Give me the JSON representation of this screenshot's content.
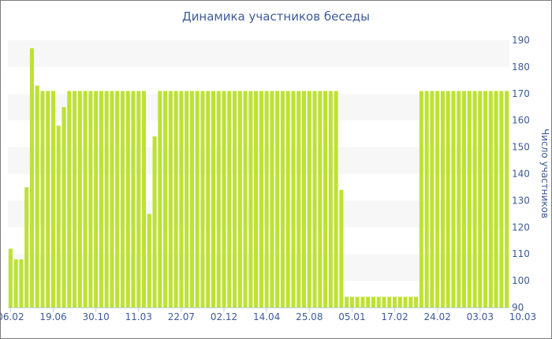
{
  "chart_data": {
    "type": "bar",
    "title": "Динамика участников беседы",
    "ylabel": "Число участников",
    "ylim": [
      90,
      190
    ],
    "y_ticks": [
      90,
      100,
      110,
      120,
      130,
      140,
      150,
      160,
      170,
      180,
      190
    ],
    "y_axis_side": "right",
    "x_tick_labels": [
      "06.02",
      "19.06",
      "30.10",
      "11.03",
      "22.07",
      "02.12",
      "14.04",
      "25.08",
      "05.01",
      "17.02",
      "24.02",
      "03.03",
      "10.03"
    ],
    "x_tick_indices": [
      0,
      8,
      16,
      24,
      32,
      40,
      48,
      56,
      64,
      72,
      80,
      88,
      96
    ],
    "bar_color": "#bde232",
    "grid_band_color": "#f7f7f7",
    "text_color": "#3d5a99",
    "series": [
      {
        "values": [
          112,
          108,
          108,
          135,
          187,
          173,
          171,
          171,
          171,
          158,
          165,
          171,
          171,
          171,
          171,
          171,
          171,
          171,
          171,
          171,
          171,
          171,
          171,
          171,
          171,
          171,
          125,
          154,
          171,
          171,
          171,
          171,
          171,
          171,
          171,
          171,
          171,
          171,
          171,
          171,
          171,
          171,
          171,
          171,
          171,
          171,
          171,
          171,
          171,
          171,
          171,
          171,
          171,
          171,
          171,
          171,
          171,
          171,
          171,
          171,
          171,
          171,
          134,
          94,
          94,
          94,
          94,
          94,
          94,
          94,
          94,
          94,
          94,
          94,
          94,
          94,
          94,
          171,
          171,
          171,
          171,
          171,
          171,
          171,
          171,
          171,
          171,
          171,
          171,
          171,
          171,
          171,
          171,
          171
        ]
      }
    ]
  }
}
